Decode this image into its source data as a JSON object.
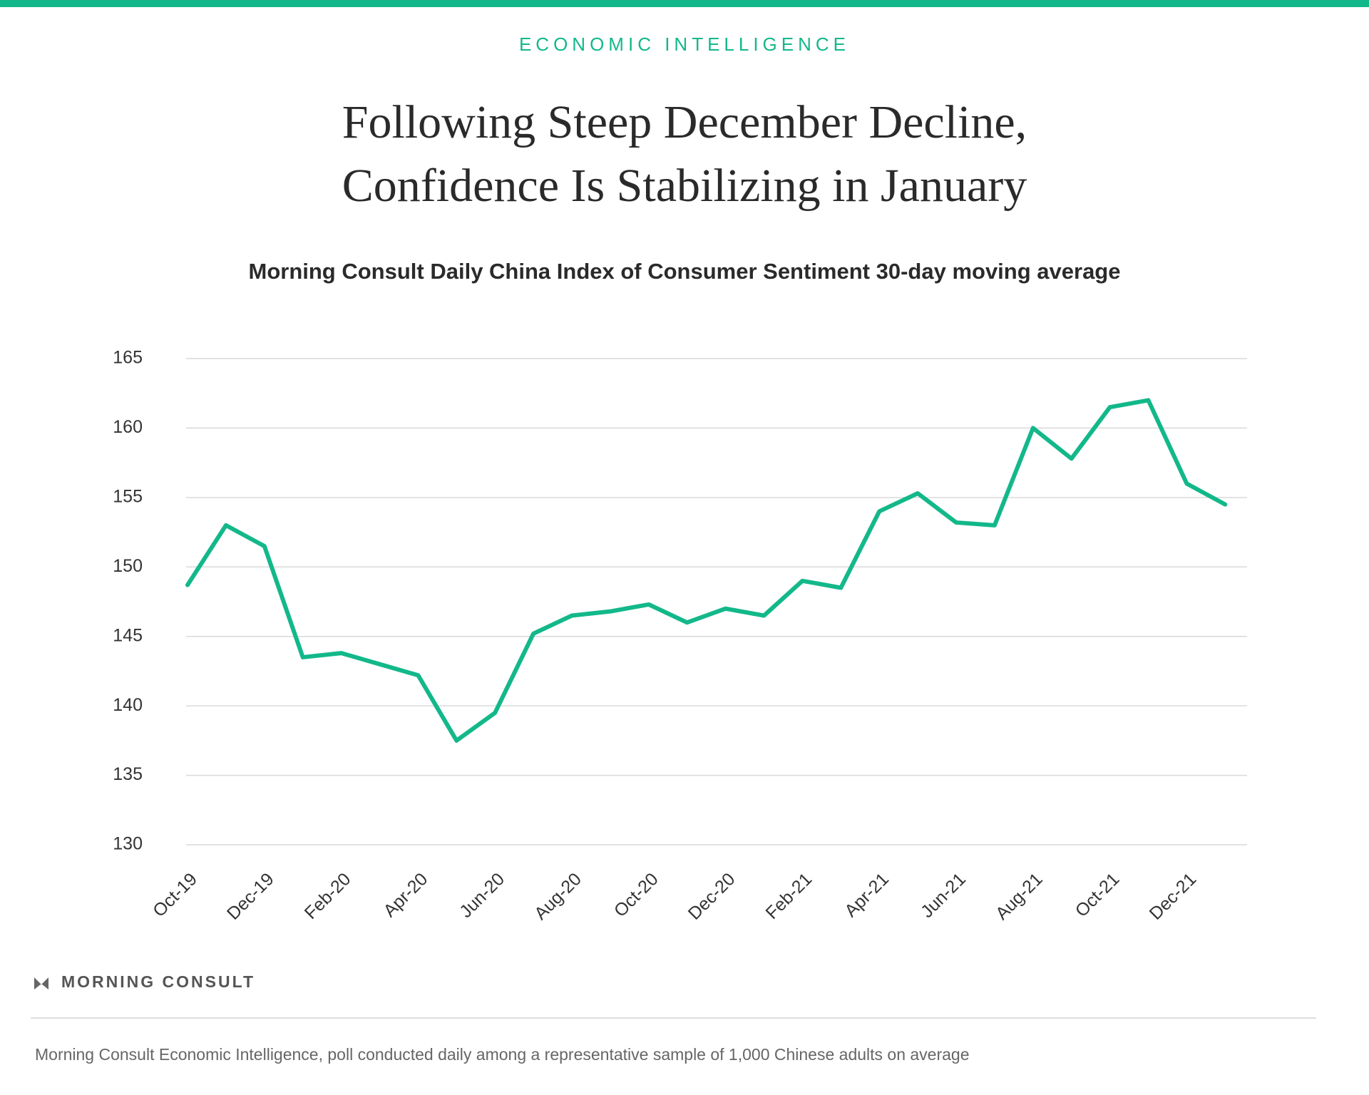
{
  "header": "ECONOMIC INTELLIGENCE",
  "brand": "MORNING CONSULT",
  "footnote": "Morning Consult Economic Intelligence, poll conducted daily among a representative sample of 1,000 Chinese adults on average",
  "chart_data": {
    "type": "line",
    "title_lines": [
      "Following Steep December Decline,",
      "Confidence Is Stabilizing in January"
    ],
    "subtitle": "Morning Consult Daily China Index of Consumer Sentiment 30-day moving average",
    "categories": [
      "Oct-19",
      null,
      "Dec-19",
      null,
      "Feb-20",
      null,
      "Apr-20",
      null,
      "Jun-20",
      null,
      "Aug-20",
      null,
      "Oct-20",
      null,
      "Dec-20",
      null,
      "Feb-21",
      null,
      "Apr-21",
      null,
      "Jun-21",
      null,
      "Aug-21",
      null,
      "Oct-21",
      null,
      "Dec-21",
      null
    ],
    "series": [
      {
        "name": "Index",
        "color": "#13b88a",
        "values": [
          148.7,
          153,
          151.5,
          143.5,
          143.8,
          143,
          142.2,
          137.5,
          139.5,
          145.2,
          146.5,
          146.8,
          147.3,
          146,
          147,
          146.5,
          149,
          148.5,
          154,
          155.3,
          153.2,
          153,
          160,
          157.8,
          161.5,
          162,
          156,
          154.5
        ]
      }
    ],
    "ylim": [
      130,
      165
    ],
    "yticks": [
      130,
      135,
      140,
      145,
      150,
      155,
      160,
      165
    ],
    "grid": true
  }
}
